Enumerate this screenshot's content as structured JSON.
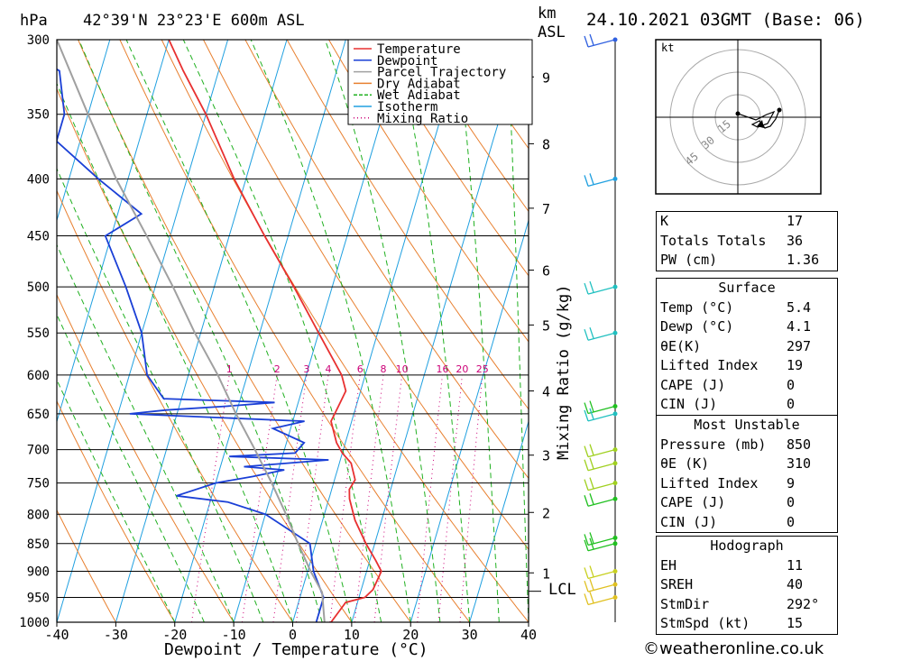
{
  "header": {
    "unit_p": "hPa",
    "location": "42°39'N 23°23'E 600m ASL",
    "unit_km": "km",
    "asl": "ASL",
    "datetime": "24.10.2021 03GMT (Base: 06)"
  },
  "axes": {
    "xlabel": "Dewpoint / Temperature (°C)",
    "mixing_label": "Mixing Ratio (g/kg)",
    "lcl": "LCL",
    "kt": "kt"
  },
  "legend": [
    "Temperature",
    "Dewpoint",
    "Parcel Trajectory",
    "Dry Adiabat",
    "Wet Adiabat",
    "Isotherm",
    "Mixing Ratio"
  ],
  "colors": {
    "temperature": "#e83030",
    "dewpoint": "#1a3fd6",
    "parcel": "#a0a0a0",
    "dry_adiabat": "#e88030",
    "wet_adiabat": "#20b020",
    "isotherm": "#20a0e0",
    "mixing": "#cc0077"
  },
  "chart_data": {
    "type": "line",
    "title": "24.10.2021 03GMT (Base: 06)",
    "pressure_levels": [
      300,
      350,
      400,
      450,
      500,
      550,
      600,
      650,
      700,
      750,
      800,
      850,
      900,
      950,
      1000
    ],
    "x_ticks": [
      -40,
      -30,
      -20,
      -10,
      0,
      10,
      20,
      30,
      40
    ],
    "xlim": [
      -40,
      40
    ],
    "ylim_hpa": [
      1000,
      300
    ],
    "skew_deg_per_log": 29,
    "km_ticks": [
      {
        "label": "9",
        "p": 324
      },
      {
        "label": "8",
        "p": 372
      },
      {
        "label": "7",
        "p": 425
      },
      {
        "label": "6",
        "p": 483
      },
      {
        "label": "5",
        "p": 541
      },
      {
        "label": "4",
        "p": 620
      },
      {
        "label": "3",
        "p": 708
      },
      {
        "label": "2",
        "p": 797
      },
      {
        "label": "1",
        "p": 903
      }
    ],
    "lcl_hpa": 938,
    "mixing_ratios": [
      "1",
      "2",
      "3",
      "4",
      "6",
      "8",
      "10",
      "16",
      "20",
      "25"
    ],
    "series": [
      {
        "name": "Temperature",
        "points": [
          [
            1000,
            6.5
          ],
          [
            960,
            8
          ],
          [
            950,
            11
          ],
          [
            935,
            12
          ],
          [
            900,
            12.5
          ],
          [
            880,
            11
          ],
          [
            850,
            8.5
          ],
          [
            810,
            5.5
          ],
          [
            775,
            3.5
          ],
          [
            760,
            3
          ],
          [
            745,
            3.5
          ],
          [
            720,
            2
          ],
          [
            705,
            0
          ],
          [
            690,
            -1.5
          ],
          [
            660,
            -3.5
          ],
          [
            640,
            -3
          ],
          [
            620,
            -2.5
          ],
          [
            600,
            -4
          ],
          [
            550,
            -10
          ],
          [
            500,
            -16.5
          ],
          [
            450,
            -24
          ],
          [
            400,
            -32
          ],
          [
            350,
            -40
          ],
          [
            320,
            -46
          ],
          [
            300,
            -50
          ]
        ]
      },
      {
        "name": "Dewpoint",
        "points": [
          [
            1000,
            4
          ],
          [
            950,
            4
          ],
          [
            900,
            1
          ],
          [
            850,
            -1
          ],
          [
            800,
            -10
          ],
          [
            780,
            -17
          ],
          [
            770,
            -26
          ],
          [
            750,
            -20
          ],
          [
            740,
            -14
          ],
          [
            730,
            -9
          ],
          [
            725,
            -16
          ],
          [
            715,
            -2
          ],
          [
            710,
            -19
          ],
          [
            705,
            -8
          ],
          [
            690,
            -7
          ],
          [
            670,
            -13
          ],
          [
            660,
            -8
          ],
          [
            650,
            -38
          ],
          [
            645,
            -32
          ],
          [
            640,
            -22
          ],
          [
            635,
            -14
          ],
          [
            630,
            -33
          ],
          [
            600,
            -37
          ],
          [
            550,
            -40
          ],
          [
            500,
            -45
          ],
          [
            450,
            -51
          ],
          [
            430,
            -46
          ],
          [
            400,
            -55
          ],
          [
            370,
            -64
          ],
          [
            350,
            -64
          ],
          [
            320,
            -67
          ],
          [
            310,
            -72
          ],
          [
            300,
            -72
          ]
        ]
      },
      {
        "name": "Parcel Trajectory",
        "points": [
          [
            1000,
            5.4
          ],
          [
            940,
            3.5
          ],
          [
            900,
            0.5
          ],
          [
            850,
            -3
          ],
          [
            800,
            -6.5
          ],
          [
            750,
            -10.5
          ],
          [
            700,
            -15
          ],
          [
            650,
            -20
          ],
          [
            600,
            -25
          ],
          [
            550,
            -31
          ],
          [
            500,
            -37
          ],
          [
            450,
            -44
          ],
          [
            400,
            -52
          ],
          [
            350,
            -60
          ],
          [
            300,
            -69
          ]
        ]
      }
    ]
  },
  "wind_profile": [
    {
      "p": 300,
      "color": "#3060e0"
    },
    {
      "p": 400,
      "color": "#20a0e0"
    },
    {
      "p": 500,
      "color": "#20c0c0"
    },
    {
      "p": 550,
      "color": "#20c0c0"
    },
    {
      "p": 640,
      "color": "#20c020"
    },
    {
      "p": 650,
      "color": "#20c0c0"
    },
    {
      "p": 700,
      "color": "#a0d020"
    },
    {
      "p": 720,
      "color": "#a0d020"
    },
    {
      "p": 750,
      "color": "#a0d020"
    },
    {
      "p": 775,
      "color": "#20c020"
    },
    {
      "p": 840,
      "color": "#20c020"
    },
    {
      "p": 850,
      "color": "#20c020"
    },
    {
      "p": 900,
      "color": "#c8d020"
    },
    {
      "p": 925,
      "color": "#e0c020"
    },
    {
      "p": 950,
      "color": "#e0c020"
    }
  ],
  "hodograph": {
    "rings": [
      "15",
      "30",
      "45"
    ]
  },
  "indices": {
    "rows": [
      {
        "k": "K",
        "v": "17"
      },
      {
        "k": "Totals Totals",
        "v": "36"
      },
      {
        "k": "PW (cm)",
        "v": "1.36"
      }
    ]
  },
  "surface": {
    "title": "Surface",
    "rows": [
      {
        "k": "Temp (°C)",
        "v": "5.4"
      },
      {
        "k": "Dewp (°C)",
        "v": "4.1"
      },
      {
        "k": "θE(K)",
        "v": "297"
      },
      {
        "k": "Lifted Index",
        "v": "19"
      },
      {
        "k": "CAPE (J)",
        "v": "0"
      },
      {
        "k": "CIN (J)",
        "v": "0"
      }
    ]
  },
  "most_unstable": {
    "title": "Most Unstable",
    "rows": [
      {
        "k": "Pressure (mb)",
        "v": "850"
      },
      {
        "k": "θE (K)",
        "v": "310"
      },
      {
        "k": "Lifted Index",
        "v": "9"
      },
      {
        "k": "CAPE (J)",
        "v": "0"
      },
      {
        "k": "CIN (J)",
        "v": "0"
      }
    ]
  },
  "hodo_table": {
    "title": "Hodograph",
    "rows": [
      {
        "k": "EH",
        "v": "11"
      },
      {
        "k": "SREH",
        "v": "40"
      },
      {
        "k": "StmDir",
        "v": "292°"
      },
      {
        "k": "StmSpd (kt)",
        "v": "15"
      }
    ]
  },
  "footer": "©weatheronline.co.uk"
}
